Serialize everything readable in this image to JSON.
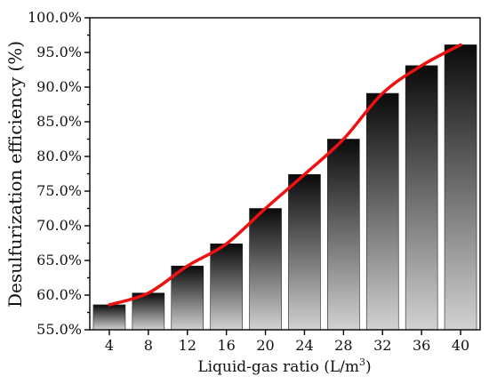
{
  "chart_data": {
    "type": "bar",
    "categories": [
      "4",
      "8",
      "12",
      "16",
      "20",
      "24",
      "28",
      "32",
      "36",
      "40"
    ],
    "values": [
      58.6,
      60.3,
      64.2,
      67.4,
      72.5,
      77.4,
      82.5,
      89.1,
      93.1,
      96.1
    ],
    "ylim": [
      55.0,
      100.0
    ],
    "yticks": [
      55.0,
      60.0,
      65.0,
      70.0,
      75.0,
      80.0,
      85.0,
      90.0,
      95.0,
      100.0
    ],
    "ytick_format": "percent_1dp",
    "xlabel": "Liquid-gas ratio (L/m",
    "xlabel_sup": "3",
    "xlabel_close": ")",
    "ylabel": "Desulfurization efficiency (%)",
    "overlay_line": {
      "values": [
        58.6,
        60.3,
        64.2,
        67.4,
        72.5,
        77.4,
        82.5,
        89.1,
        93.1,
        96.1
      ],
      "color": "#ee1111"
    },
    "bar_gradient": {
      "top": "#0a0a0a",
      "bottom": "#d2d2d2"
    },
    "grid": false
  }
}
